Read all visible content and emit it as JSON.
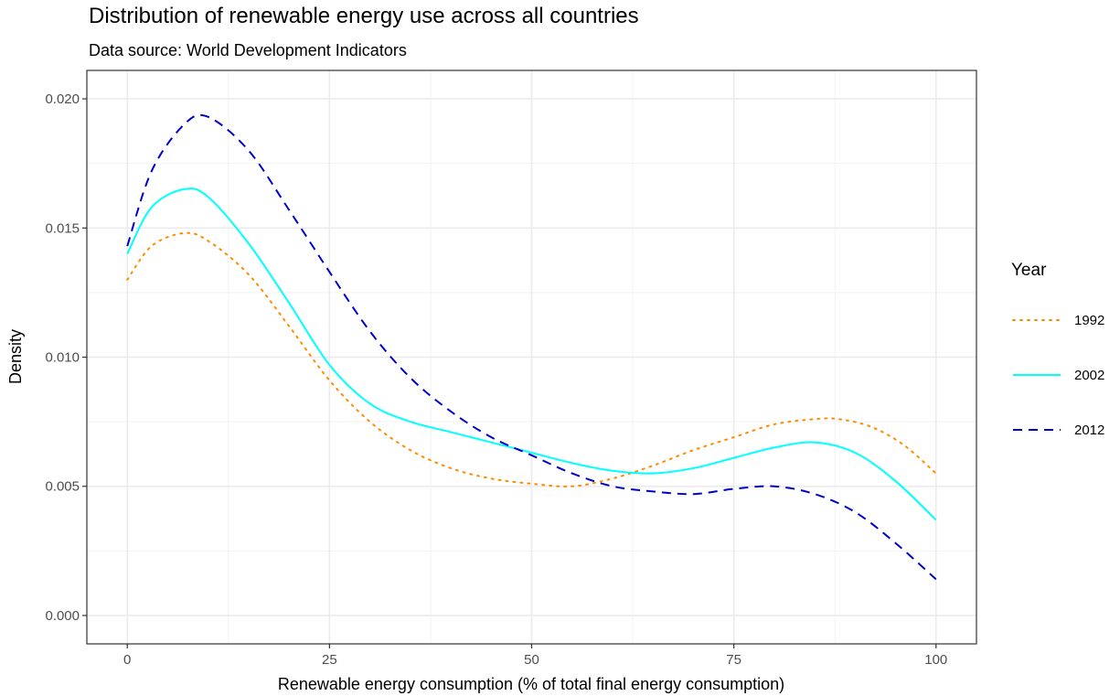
{
  "chart_data": {
    "type": "line",
    "title": "Distribution of renewable energy use across all countries",
    "subtitle": "Data source: World Development Indicators",
    "xlabel": "Renewable energy consumption (% of total final energy consumption)",
    "ylabel": "Density",
    "xlim": [
      -5,
      105
    ],
    "ylim": [
      -0.0011,
      0.0211
    ],
    "x_ticks": [
      0,
      25,
      50,
      75,
      100
    ],
    "x_tick_labels": [
      "0",
      "25",
      "50",
      "75",
      "100"
    ],
    "y_ticks": [
      0,
      0.005,
      0.01,
      0.015,
      0.02
    ],
    "y_tick_labels": [
      "0.000",
      "0.005",
      "0.010",
      "0.015",
      "0.020"
    ],
    "grid": true,
    "legend": {
      "title": "Year",
      "position": "right"
    },
    "series": [
      {
        "name": "1992",
        "color": "#ff8c00",
        "linetype": "dotted",
        "x": [
          0,
          3,
          7,
          10,
          15,
          20,
          25,
          30,
          35,
          40,
          45,
          50,
          55,
          60,
          65,
          70,
          75,
          80,
          85,
          88,
          92,
          96,
          100
        ],
        "y": [
          0.013,
          0.0143,
          0.0148,
          0.0145,
          0.0132,
          0.0112,
          0.0091,
          0.0075,
          0.0064,
          0.0057,
          0.0053,
          0.0051,
          0.005,
          0.0053,
          0.0058,
          0.0064,
          0.0069,
          0.0074,
          0.0076,
          0.0076,
          0.0073,
          0.0066,
          0.0055
        ]
      },
      {
        "name": "2002",
        "color": "#00ffff",
        "linetype": "solid",
        "x": [
          0,
          3,
          7,
          10,
          15,
          20,
          25,
          30,
          35,
          40,
          45,
          50,
          55,
          60,
          65,
          70,
          75,
          80,
          85,
          90,
          95,
          100
        ],
        "y": [
          0.014,
          0.0158,
          0.0165,
          0.0162,
          0.0144,
          0.0121,
          0.0097,
          0.0082,
          0.0075,
          0.0071,
          0.0067,
          0.0063,
          0.0059,
          0.0056,
          0.0055,
          0.0057,
          0.0061,
          0.0065,
          0.0067,
          0.0063,
          0.0052,
          0.0037
        ]
      },
      {
        "name": "2012",
        "color": "#0000cd",
        "linetype": "dashed",
        "x": [
          0,
          3,
          7,
          10,
          15,
          20,
          25,
          30,
          35,
          40,
          45,
          50,
          55,
          60,
          65,
          70,
          75,
          80,
          85,
          90,
          95,
          100
        ],
        "y": [
          0.0143,
          0.0172,
          0.019,
          0.0193,
          0.018,
          0.0157,
          0.0133,
          0.011,
          0.0092,
          0.0079,
          0.0069,
          0.0062,
          0.0055,
          0.005,
          0.0048,
          0.0047,
          0.0049,
          0.005,
          0.0047,
          0.004,
          0.0028,
          0.0014
        ]
      }
    ]
  }
}
